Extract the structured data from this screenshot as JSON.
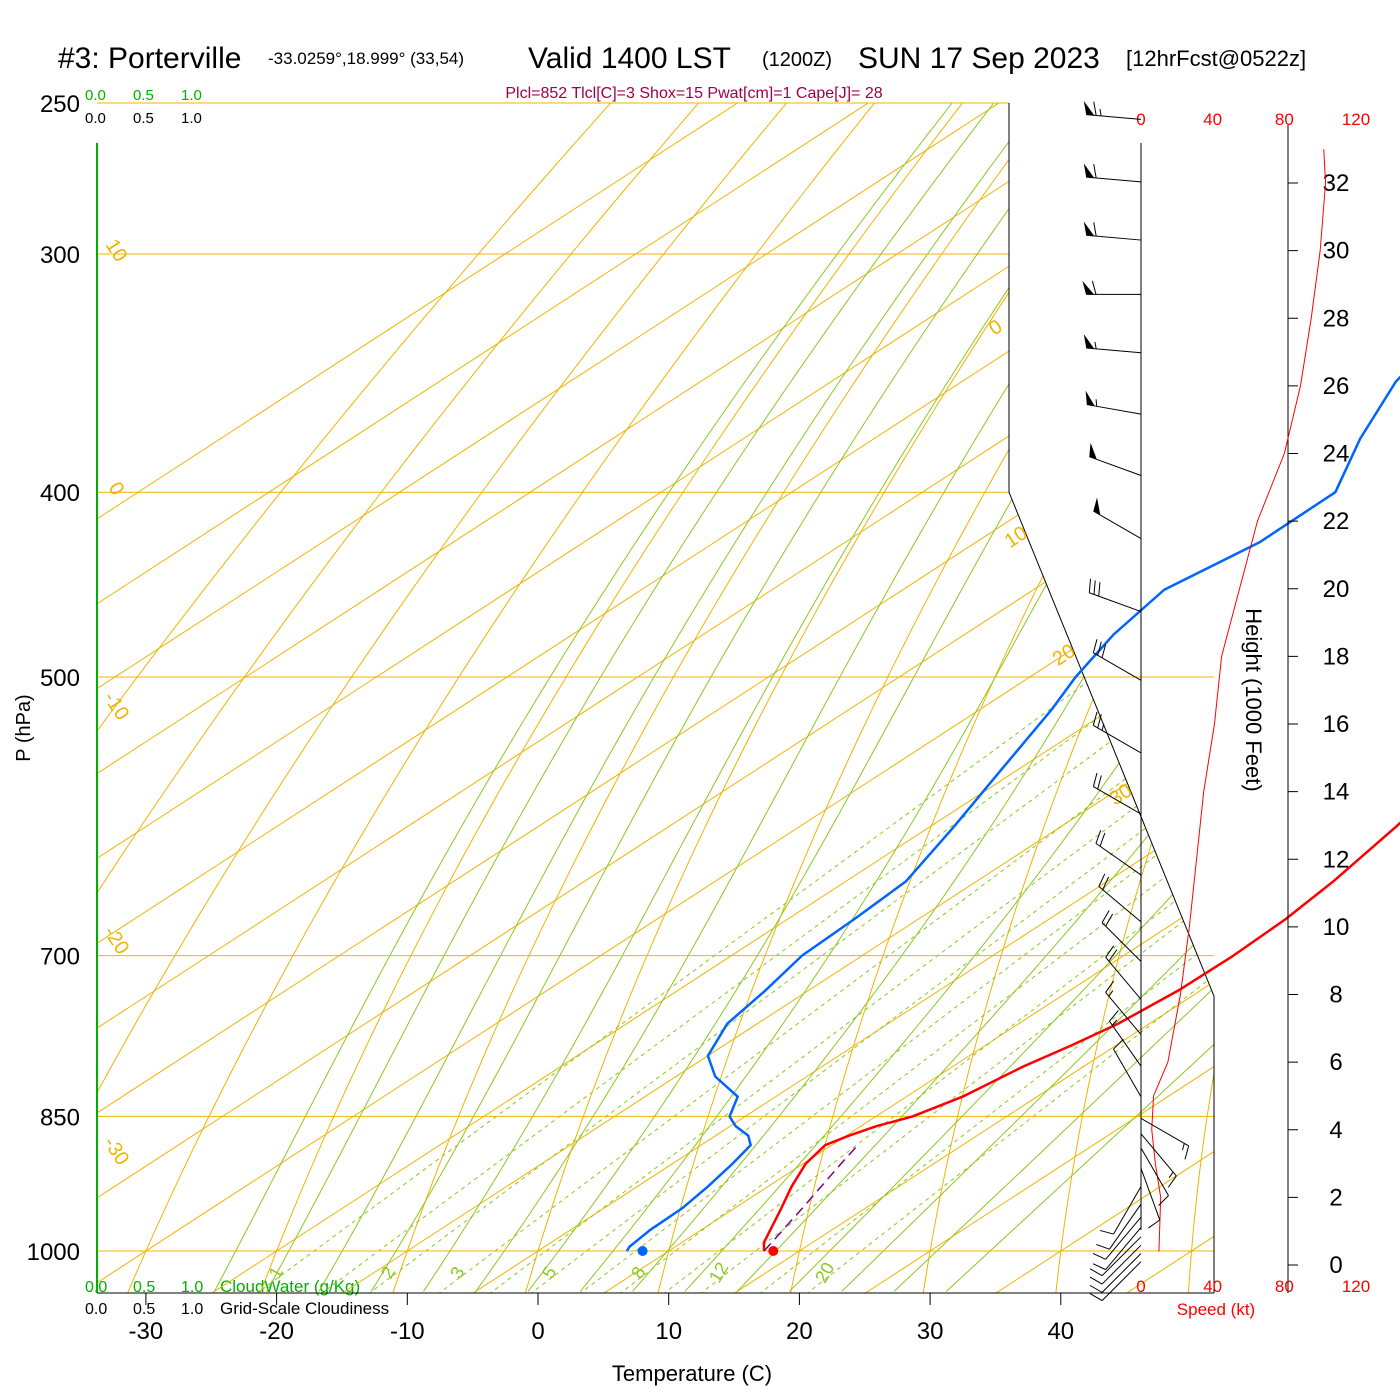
{
  "header": {
    "station": "#3: Porterville",
    "coords": "-33.0259°,18.999° (33,54)",
    "valid": "Valid 1400 LST",
    "zulu": "(1200Z)",
    "date": "SUN 17 Sep 2023",
    "forecast": "[12hrFcst@0522z]",
    "indices": "Plcl=852 Tlcl[C]=3 Shox=15 Pwat[cm]=1 Cape[J]= 28"
  },
  "labels": {
    "x_axis": "Temperature (C)",
    "y_axis": "P (hPa)",
    "height_axis": "Height (1000 Feet)",
    "speed_axis": "Speed (kt)",
    "cloud_water": "CloudWater (g/Kg)",
    "cloudiness": "Grid-Scale Cloudiness",
    "scale_ticks": [
      "0.0",
      "0.5",
      "1.0"
    ]
  },
  "colors": {
    "isotherm": "#f0b400",
    "dry_adiabat": "#f0b400",
    "moist_adiabat": "#8cc820",
    "mixing_ratio": "#8cc820",
    "temperature": "#ff0000",
    "dewpoint": "#0064ff",
    "parcel": "#800080",
    "cloud_scale": "#00b000",
    "wind_speed": "#ff0000",
    "header_indices": "#a0004a"
  },
  "chart_data": {
    "type": "line",
    "title": "#3: Porterville Valid 1400 LST (1200Z) SUN 17 Sep 2023 [12hrFcst@0522z]",
    "xlabel": "Temperature (C)",
    "ylabel": "P (hPa)",
    "xlim": [
      -34,
      36
    ],
    "ylim": [
      1000,
      250
    ],
    "pressure_ticks": [
      250,
      300,
      400,
      500,
      700,
      850,
      1000
    ],
    "temp_ticks": [
      -30,
      -20,
      -10,
      0,
      10,
      20,
      30,
      40
    ],
    "isotherm_labels": [
      {
        "text": "10",
        "p": 300,
        "t_offset": 0
      },
      {
        "text": "0",
        "p": 400,
        "t_offset": 0
      },
      {
        "text": "-10",
        "p": 520,
        "t_offset": 0
      },
      {
        "text": "-20",
        "p": 690,
        "t_offset": 0
      },
      {
        "text": "-30",
        "p": 890,
        "t_offset": 0
      },
      {
        "text": "0",
        "p": 330,
        "t_offset": 1
      },
      {
        "text": "10",
        "p": 425,
        "t_offset": 1
      },
      {
        "text": "20",
        "p": 490,
        "t_offset": 1
      },
      {
        "text": "30",
        "p": 580,
        "t_offset": 1
      }
    ],
    "mixing_ratio_labels": [
      "1",
      "2",
      "3",
      "5",
      "8",
      "12",
      "20"
    ],
    "temperature": {
      "p": [
        1000,
        990,
        975,
        950,
        925,
        900,
        880,
        870,
        860,
        850,
        830,
        800,
        780,
        760,
        730,
        700,
        670,
        640,
        600,
        560,
        520,
        500,
        475,
        450,
        425,
        400,
        375,
        350,
        325,
        300,
        285,
        270,
        262
      ],
      "t": [
        17.3,
        16.3,
        15.3,
        13.6,
        11.8,
        10.2,
        9.5,
        10.2,
        11.2,
        12.8,
        14.3,
        15.4,
        16.6,
        17.6,
        18.3,
        18.4,
        18.1,
        17.3,
        15.7,
        13.7,
        11.6,
        10.2,
        7.7,
        4.8,
        1.3,
        -2.4,
        -6.5,
        -10.8,
        -15.4,
        -20.4,
        -23.7,
        -27.3,
        -29.3
      ]
    },
    "dewpoint": {
      "p": [
        1000,
        995,
        975,
        950,
        925,
        900,
        880,
        870,
        860,
        850,
        830,
        810,
        790,
        760,
        730,
        700,
        670,
        640,
        600,
        560,
        520,
        500,
        475,
        450,
        425,
        400,
        375,
        350,
        325,
        300,
        285,
        270,
        262
      ],
      "t": [
        6.8,
        6.5,
        6.1,
        6.0,
        5.4,
        4.6,
        3.8,
        2.5,
        0.4,
        -1.2,
        -2.9,
        -7.0,
        -10.0,
        -12.3,
        -13.3,
        -14.6,
        -14.9,
        -15.4,
        -18.1,
        -21.2,
        -24.5,
        -26.5,
        -28.6,
        -30.0,
        -28.3,
        -28.4,
        -32.8,
        -36.8,
        -39.5,
        -42.5,
        -44.9,
        -47.8,
        -49.3
      ]
    },
    "parcel": {
      "p": [
        1000,
        950,
        900,
        880
      ],
      "t": [
        17.3,
        15.2,
        12.9,
        12.0
      ]
    },
    "surface_points": [
      {
        "name": "surface-dewpoint",
        "p": 1000,
        "t": 8.0,
        "color": "#0064ff"
      },
      {
        "name": "surface-temperature",
        "p": 1000,
        "t": 18.0,
        "color": "#ff0000"
      }
    ],
    "height_ticks_kft": [
      0,
      2,
      4,
      6,
      8,
      10,
      12,
      14,
      16,
      18,
      20,
      22,
      24,
      26,
      28,
      30,
      32
    ],
    "speed_ticks": [
      0,
      40,
      80,
      120
    ],
    "wind_speed_profile": {
      "height_kft": [
        0.4,
        2,
        3,
        4,
        5,
        6,
        8,
        10,
        12,
        14,
        16,
        18,
        20,
        22,
        24,
        26,
        28,
        30,
        32,
        33
      ],
      "speed_kt": [
        10,
        11,
        8,
        6,
        7,
        15,
        22,
        27,
        31,
        35,
        41,
        45,
        55,
        65,
        80,
        89,
        95,
        100,
        103,
        102
      ]
    },
    "wind_barbs": [
      {
        "p": 255,
        "dir": 275,
        "spd": 65
      },
      {
        "p": 275,
        "dir": 275,
        "spd": 60
      },
      {
        "p": 295,
        "dir": 275,
        "spd": 60
      },
      {
        "p": 315,
        "dir": 270,
        "spd": 60
      },
      {
        "p": 338,
        "dir": 275,
        "spd": 55
      },
      {
        "p": 364,
        "dir": 280,
        "spd": 55
      },
      {
        "p": 392,
        "dir": 290,
        "spd": 50
      },
      {
        "p": 423,
        "dir": 300,
        "spd": 50
      },
      {
        "p": 462,
        "dir": 290,
        "spd": 30
      },
      {
        "p": 502,
        "dir": 300,
        "spd": 30
      },
      {
        "p": 548,
        "dir": 300,
        "spd": 25
      },
      {
        "p": 590,
        "dir": 300,
        "spd": 20
      },
      {
        "p": 635,
        "dir": 305,
        "spd": 20
      },
      {
        "p": 672,
        "dir": 310,
        "spd": 20
      },
      {
        "p": 705,
        "dir": 315,
        "spd": 20
      },
      {
        "p": 738,
        "dir": 320,
        "spd": 20
      },
      {
        "p": 770,
        "dir": 320,
        "spd": 15
      },
      {
        "p": 800,
        "dir": 325,
        "spd": 15
      },
      {
        "p": 830,
        "dir": 330,
        "spd": 10
      },
      {
        "p": 852,
        "dir": 120,
        "spd": 15
      },
      {
        "p": 868,
        "dir": 140,
        "spd": 15
      },
      {
        "p": 883,
        "dir": 150,
        "spd": 10
      },
      {
        "p": 905,
        "dir": 160,
        "spd": 10
      },
      {
        "p": 925,
        "dir": 210,
        "spd": 10
      },
      {
        "p": 945,
        "dir": 215,
        "spd": 10
      },
      {
        "p": 960,
        "dir": 220,
        "spd": 10
      },
      {
        "p": 972,
        "dir": 220,
        "spd": 10
      },
      {
        "p": 983,
        "dir": 225,
        "spd": 10
      },
      {
        "p": 993,
        "dir": 225,
        "spd": 10
      },
      {
        "p": 1003,
        "dir": 225,
        "spd": 10
      },
      {
        "p": 1013,
        "dir": 225,
        "spd": 10
      }
    ]
  }
}
